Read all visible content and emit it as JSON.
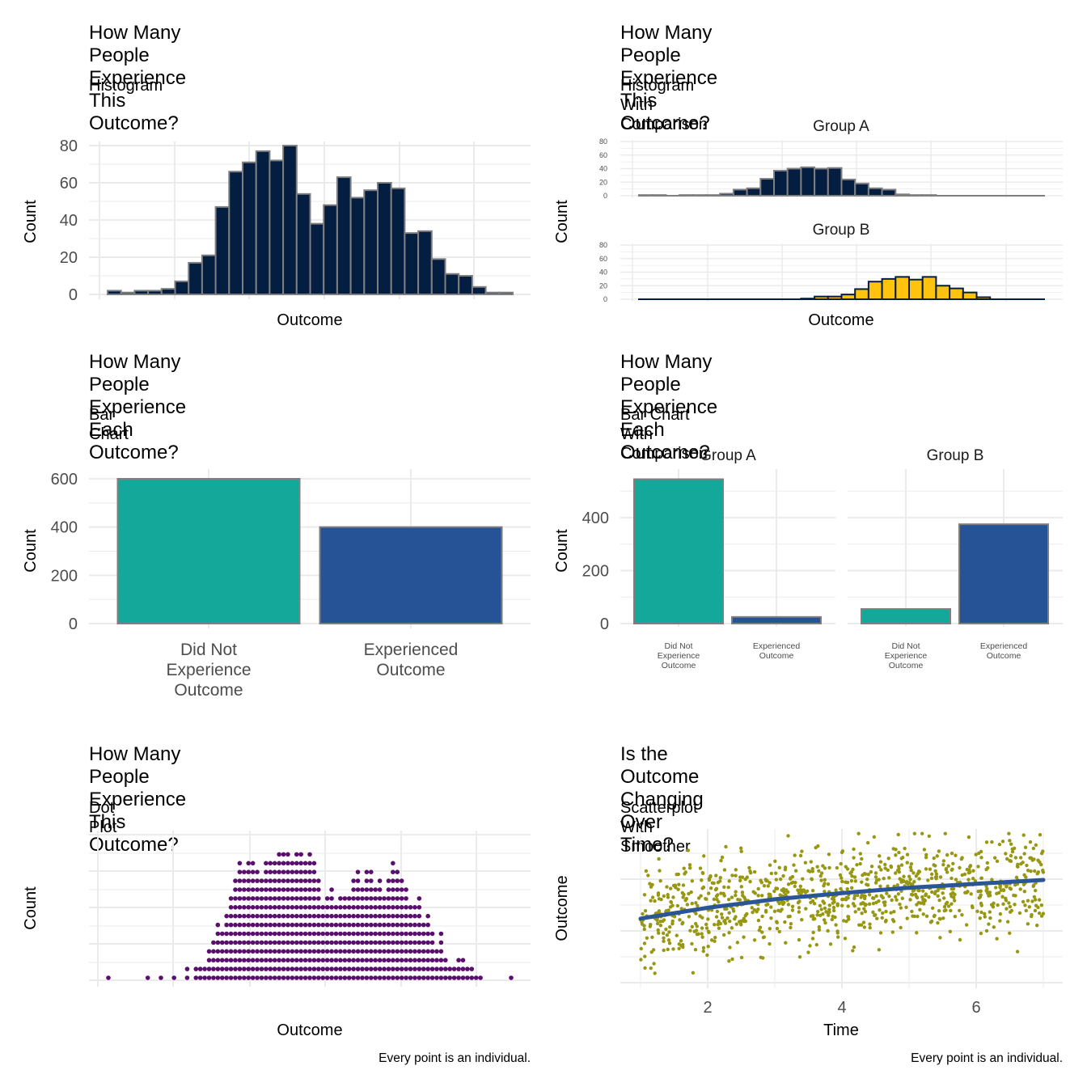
{
  "chart_data": [
    {
      "id": "p1",
      "type": "bar",
      "title": "How Many People\nExperience This Outcome?",
      "subtitle": "Histogram",
      "xlabel": "Outcome",
      "ylabel": "Count",
      "ylim": [
        0,
        80
      ],
      "yticks": [
        0,
        20,
        40,
        60,
        80
      ],
      "grid": true,
      "fill": "#041e42",
      "values": [
        2,
        1,
        2,
        2,
        3,
        7,
        17,
        21,
        47,
        66,
        71,
        77,
        72,
        80,
        54,
        38,
        48,
        63,
        52,
        56,
        60,
        57,
        33,
        34,
        19,
        11,
        10,
        4,
        1,
        1
      ]
    },
    {
      "id": "p2",
      "type": "bar",
      "title": "How Many People\nExperience This Outcome?",
      "subtitle": "Histogram With Comparison",
      "xlabel": "Outcome",
      "ylabel": "Count",
      "ylim": [
        0,
        80
      ],
      "yticks": [
        0,
        20,
        40,
        60,
        80
      ],
      "grid": true,
      "series": [
        {
          "name": "Group A",
          "color": "#041e42",
          "values": [
            1,
            1,
            0,
            1,
            1,
            1,
            3,
            9,
            11,
            25,
            37,
            40,
            42,
            40,
            41,
            24,
            18,
            11,
            9,
            2,
            1,
            1,
            0,
            0,
            0,
            0,
            0,
            0,
            0,
            0
          ]
        },
        {
          "name": "Group B",
          "color": "#ffc20e",
          "values": [
            0,
            0,
            0,
            0,
            0,
            0,
            0,
            0,
            0,
            0,
            0,
            0,
            1,
            4,
            4,
            7,
            15,
            26,
            30,
            33,
            29,
            33,
            20,
            16,
            10,
            3,
            0,
            0,
            0,
            0
          ]
        }
      ]
    },
    {
      "id": "p3",
      "type": "bar",
      "title": "How Many People\nExperience Each Outcome?",
      "subtitle": "Bar Chart",
      "xlabel": "",
      "ylabel": "Count",
      "ylim": [
        0,
        600
      ],
      "yticks": [
        0,
        200,
        400,
        600
      ],
      "grid": true,
      "categories": [
        "Did Not\nExperience\nOutcome",
        "Experienced\nOutcome"
      ],
      "values": [
        600,
        400
      ],
      "colors": [
        "#14a89a",
        "#265396"
      ]
    },
    {
      "id": "p4",
      "type": "bar",
      "title": "How Many People\nExperience Each Outcome?",
      "subtitle": "Bar Chart With Comparison",
      "xlabel": "",
      "ylabel": "Count",
      "ylim": [
        0,
        550
      ],
      "yticks": [
        0,
        200,
        400
      ],
      "grid": true,
      "categories": [
        "Did Not\nExperience\nOutcome",
        "Experienced\nOutcome"
      ],
      "colors": [
        "#14a89a",
        "#265396"
      ],
      "series": [
        {
          "name": "Group A",
          "values": [
            545,
            25
          ]
        },
        {
          "name": "Group B",
          "values": [
            55,
            375
          ]
        }
      ]
    },
    {
      "id": "p5",
      "type": "scatter",
      "title": "How Many People\nExperience This Outcome?",
      "subtitle": "Dot Plot",
      "xlabel": "Outcome",
      "ylabel": "Count",
      "caption": "Every point is an individual.",
      "grid": true,
      "color": "#5a0f6e",
      "column_counts": [
        1,
        0,
        0,
        0,
        0,
        0,
        0,
        0,
        0,
        1,
        0,
        0,
        1,
        0,
        0,
        1,
        0,
        0,
        2,
        0,
        2,
        2,
        2,
        4,
        5,
        7,
        6,
        8,
        10,
        12,
        14,
        13,
        14,
        14,
        13,
        12,
        14,
        14,
        14,
        15,
        15,
        15,
        14,
        15,
        15,
        14,
        15,
        14,
        12,
        9,
        10,
        11,
        9,
        10,
        10,
        10,
        12,
        13,
        11,
        13,
        13,
        11,
        12,
        10,
        12,
        14,
        13,
        12,
        11,
        9,
        9,
        10,
        7,
        8,
        6,
        4,
        6,
        3,
        2,
        2,
        3,
        3,
        2,
        2,
        1,
        1,
        0,
        0,
        0,
        0,
        0,
        0,
        1
      ]
    },
    {
      "id": "p6",
      "type": "scatter",
      "title": "Is the Outcome\nChanging Over Time?",
      "subtitle": "Scatterplot With Smoother",
      "xlabel": "Time",
      "ylabel": "Outcome",
      "caption": "Every point is an individual.",
      "xlim": [
        1,
        7
      ],
      "xticks": [
        2,
        4,
        6
      ],
      "ylim": [
        0,
        1
      ],
      "grid": true,
      "point_color": "#979712",
      "smoother_color": "#2a5597",
      "n_points": 1000,
      "smoother": {
        "x": [
          1,
          2,
          3,
          4,
          5,
          6,
          7
        ],
        "y": [
          0.42,
          0.49,
          0.545,
          0.585,
          0.62,
          0.645,
          0.67
        ]
      }
    }
  ]
}
